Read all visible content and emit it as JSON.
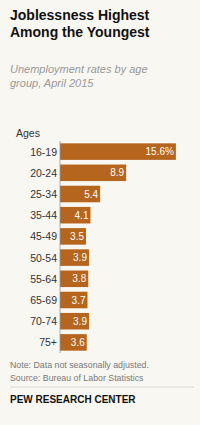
{
  "chart_data": {
    "type": "bar",
    "orientation": "horizontal",
    "title": "Joblessness Highest\nAmong the Youngest",
    "subtitle": "Unemployment rates by age\ngroup, April 2015",
    "y_label": "Ages",
    "categories": [
      "16-19",
      "20-24",
      "25-34",
      "35-44",
      "45-49",
      "50-54",
      "55-64",
      "65-69",
      "70-74",
      "75+"
    ],
    "values": [
      15.6,
      8.9,
      5.4,
      4.1,
      3.5,
      3.9,
      3.8,
      3.7,
      3.9,
      3.6
    ],
    "value_labels": [
      "15.6%",
      "8.9",
      "5.4",
      "4.1",
      "3.5",
      "3.9",
      "3.8",
      "3.7",
      "3.9",
      "3.6"
    ],
    "data_labels": true,
    "color": "#b5651d",
    "xlim": [
      0,
      17.5
    ],
    "tick_labels": "y",
    "grid": false,
    "annotations": [
      "Note: Data not seasonally adjusted.\nSource: Bureau of Labor Statistics",
      "PEW RESEARCH CENTER"
    ]
  }
}
